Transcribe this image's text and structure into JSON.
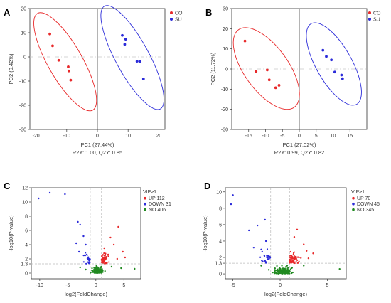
{
  "chart_data": [
    {
      "panel": "A",
      "type": "scatter",
      "xlabel": "PC1 (27.44%)",
      "ylabel": "PC2 (9.42%)",
      "stats": "R2Y: 1.00, Q2Y: 0.85",
      "xlim": [
        -22,
        22
      ],
      "ylim": [
        -30,
        20
      ],
      "xticks": [
        -20,
        -10,
        0,
        10,
        20
      ],
      "yticks": [
        -30,
        -20,
        -10,
        0,
        10,
        20
      ],
      "grid": false,
      "legend_position": "top-right",
      "series": [
        {
          "name": "CO",
          "color": "#e8292a",
          "points": [
            [
              -15.5,
              9.5
            ],
            [
              -14.6,
              4.6
            ],
            [
              -12.6,
              -1.4
            ],
            [
              -9.5,
              -4.1
            ],
            [
              -9.3,
              -5.8
            ],
            [
              -8.7,
              -9.6
            ]
          ]
        },
        {
          "name": "SU",
          "color": "#2b2bd9",
          "points": [
            [
              8.1,
              8.9
            ],
            [
              9.2,
              7.3
            ],
            [
              8.9,
              5.2
            ],
            [
              12.9,
              -1.8
            ],
            [
              13.8,
              -1.9
            ],
            [
              15.0,
              -9.1
            ]
          ]
        }
      ],
      "ellipses": [
        {
          "series": "CO",
          "color": "#e8292a",
          "center": [
            -10.5,
            -2.0
          ],
          "endpoints": [
            [
              -19.5,
              18.0
            ],
            [
              -1.5,
              -22.0
            ]
          ],
          "minor_half": 3.6
        },
        {
          "series": "SU",
          "color": "#2b2bd9",
          "center": [
            11.4,
            -0.2
          ],
          "endpoints": [
            [
              2.3,
              21.0
            ],
            [
              20.5,
              -21.5
            ]
          ],
          "minor_half": 3.5
        }
      ]
    },
    {
      "panel": "B",
      "type": "scatter",
      "xlabel": "PC1 (27.02%)",
      "ylabel": "PC2 (11.72%)",
      "stats": "R2Y: 0.99, Q2Y: 0.82",
      "xlim": [
        -20,
        20
      ],
      "ylim": [
        -30,
        30
      ],
      "xticks": [
        -15,
        -10,
        -5,
        0,
        5,
        10,
        15
      ],
      "yticks": [
        -30,
        -20,
        -10,
        0,
        10,
        20,
        30
      ],
      "grid": false,
      "legend_position": "top-right",
      "series": [
        {
          "name": "CO",
          "color": "#e8292a",
          "points": [
            [
              -16.1,
              13.9
            ],
            [
              -12.8,
              -1.2
            ],
            [
              -9.5,
              -0.5
            ],
            [
              -8.9,
              -5.4
            ],
            [
              -7.0,
              -9.3
            ],
            [
              -6.0,
              -8.1
            ]
          ]
        },
        {
          "name": "SU",
          "color": "#2b2bd9",
          "points": [
            [
              7.0,
              9.3
            ],
            [
              8.0,
              6.2
            ],
            [
              9.5,
              4.5
            ],
            [
              10.5,
              -1.5
            ],
            [
              12.5,
              -3.0
            ],
            [
              12.8,
              -4.8
            ]
          ]
        }
      ],
      "ellipses": [
        {
          "series": "CO",
          "color": "#e8292a",
          "center": [
            -9.8,
            0.3
          ],
          "endpoints": [
            [
              -18.0,
              19.5
            ],
            [
              -1.5,
              -19.0
            ]
          ],
          "minor_half": 4.2
        },
        {
          "series": "SU",
          "color": "#2b2bd9",
          "center": [
            10.0,
            1.5
          ],
          "endpoints": [
            [
              3.5,
              22.5
            ],
            [
              17.0,
              -17.5
            ]
          ],
          "minor_half": 3.4
        }
      ]
    },
    {
      "panel": "C",
      "type": "scatter",
      "xlabel": "log2(FoldChange)",
      "ylabel": "-log10(P-value)",
      "xlim": [
        -11.5,
        8
      ],
      "ylim": [
        -0.8,
        12
      ],
      "xticks": [
        -10,
        -5,
        0,
        5
      ],
      "yticks": [
        0,
        1.3,
        2,
        4,
        6,
        8,
        10,
        12
      ],
      "threshold_lines": {
        "x": [
          -1,
          1
        ],
        "y": 1.3
      },
      "legend_title": "VIP≥1",
      "legend_position": "top-right",
      "grid": false,
      "series": [
        {
          "name": "UP 112",
          "color": "#e8292a",
          "count": 112,
          "points": [
            [
              4.0,
              6.5
            ],
            [
              2.6,
              5.0
            ],
            [
              3.2,
              4.0
            ],
            [
              1.5,
              3.5
            ],
            [
              4.8,
              3.0
            ],
            [
              2.2,
              2.6
            ],
            [
              5.2,
              2.2
            ],
            [
              3.8,
              2.0
            ]
          ]
        },
        {
          "name": "DOWN 31",
          "color": "#2b2bd9",
          "count": 31,
          "points": [
            [
              -10.2,
              10.5
            ],
            [
              -8.2,
              11.3
            ],
            [
              -5.5,
              11.1
            ],
            [
              -3.2,
              7.2
            ],
            [
              -2.8,
              6.8
            ],
            [
              -2.2,
              5.2
            ],
            [
              -3.5,
              4.2
            ],
            [
              -1.8,
              4.0
            ],
            [
              -3.0,
              3.0
            ],
            [
              -2.0,
              2.5
            ]
          ]
        },
        {
          "name": "NO 406",
          "color": "#208a20",
          "count": 406,
          "points": [
            [
              -2.8,
              0.8
            ],
            [
              -1.8,
              0.5
            ],
            [
              -0.5,
              0.2
            ],
            [
              0.5,
              0.6
            ],
            [
              2.8,
              0.9
            ],
            [
              4.5,
              0.7
            ],
            [
              6.9,
              0.6
            ]
          ]
        }
      ]
    },
    {
      "panel": "D",
      "type": "scatter",
      "xlabel": "log2(FoldChange)",
      "ylabel": "-log10(P-value)",
      "xlim": [
        -5.8,
        7
      ],
      "ylim": [
        -0.6,
        10.5
      ],
      "xticks": [
        -5,
        0,
        5
      ],
      "yticks": [
        0,
        1.3,
        2,
        4,
        6,
        8,
        10
      ],
      "threshold_lines": {
        "x": [
          -1,
          1
        ],
        "y": 1.3
      },
      "legend_title": "VIP≥1",
      "legend_position": "top-right",
      "grid": false,
      "series": [
        {
          "name": "UP 70",
          "color": "#e8292a",
          "count": 70,
          "points": [
            [
              1.8,
              5.4
            ],
            [
              1.5,
              4.5
            ],
            [
              2.5,
              3.6
            ],
            [
              2.8,
              2.8
            ],
            [
              3.5,
              2.5
            ],
            [
              2.0,
              2.0
            ],
            [
              3.0,
              1.9
            ]
          ]
        },
        {
          "name": "DOWN 46",
          "color": "#2b2bd9",
          "count": 46,
          "points": [
            [
              -5.0,
              9.6
            ],
            [
              -5.2,
              8.5
            ],
            [
              -1.6,
              6.6
            ],
            [
              -2.4,
              5.9
            ],
            [
              -3.3,
              5.3
            ],
            [
              -1.5,
              4.0
            ],
            [
              -2.8,
              3.2
            ],
            [
              -1.9,
              2.7
            ],
            [
              -1.4,
              2.2
            ]
          ]
        },
        {
          "name": "NO 345",
          "color": "#208a20",
          "count": 345,
          "points": [
            [
              -2.0,
              1.0
            ],
            [
              -1.2,
              0.5
            ],
            [
              -0.4,
              0.2
            ],
            [
              0.4,
              0.4
            ],
            [
              1.2,
              0.7
            ],
            [
              2.5,
              1.0
            ],
            [
              6.3,
              0.6
            ]
          ]
        }
      ]
    }
  ]
}
